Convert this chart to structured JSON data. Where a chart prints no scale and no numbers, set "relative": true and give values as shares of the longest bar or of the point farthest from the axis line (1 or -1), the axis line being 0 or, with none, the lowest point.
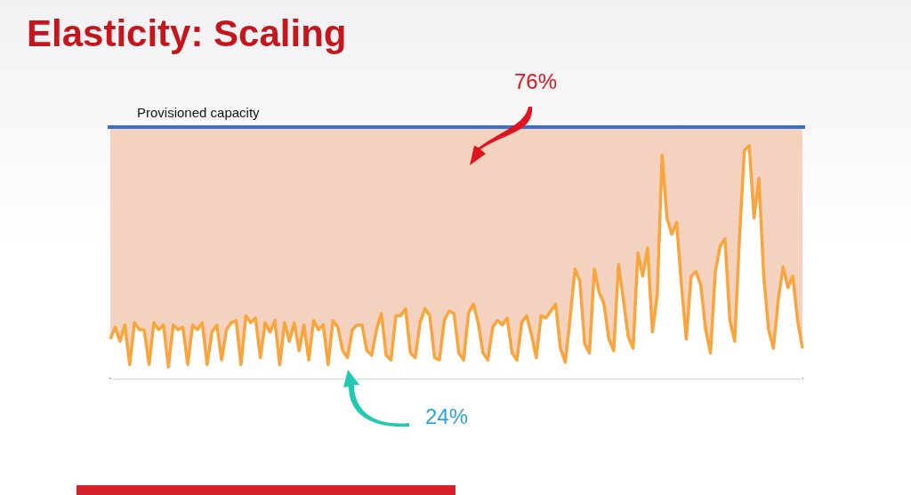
{
  "chart_data": {
    "type": "area",
    "title": "Elasticity: Scaling",
    "relative": true,
    "marker": "none",
    "grid": false,
    "legend": false,
    "categories": [
      null,
      null,
      null,
      null,
      null,
      null,
      null,
      null,
      null,
      null,
      null,
      null,
      null,
      null,
      null,
      null,
      null,
      null,
      null,
      null,
      null,
      null,
      null,
      null,
      null,
      null,
      null,
      null,
      null,
      null,
      null,
      null,
      null,
      null,
      null,
      null,
      null,
      null,
      null,
      null,
      null,
      null,
      null,
      null,
      null,
      null,
      null,
      null,
      null,
      null,
      null,
      null,
      null,
      null,
      null,
      null,
      null,
      null,
      null,
      null,
      null,
      null,
      null,
      null,
      null,
      null,
      null,
      null,
      null,
      null,
      null,
      null,
      null,
      null,
      null,
      null,
      null,
      null,
      null,
      null,
      null,
      null,
      null,
      null,
      null,
      null,
      null,
      null,
      null,
      null,
      null,
      null,
      null,
      null,
      null,
      null,
      null,
      null,
      null,
      null,
      null,
      null,
      null,
      null,
      null,
      null,
      null,
      null,
      null,
      null,
      null,
      null,
      null,
      null,
      null,
      null,
      null,
      null,
      null,
      null,
      null,
      null,
      null,
      null,
      null,
      null,
      null,
      null,
      null,
      null,
      null,
      null,
      null,
      null,
      null,
      null,
      null,
      null,
      null,
      null,
      null,
      null,
      null,
      null
    ],
    "series": [
      {
        "color": "#f7a53c",
        "values": [
          0.17,
          0.22,
          0.16,
          0.23,
          0.06,
          0.24,
          0.21,
          0.21,
          0.06,
          0.24,
          0.21,
          0.23,
          0.05,
          0.23,
          0.21,
          0.22,
          0.06,
          0.23,
          0.21,
          0.24,
          0.06,
          0.2,
          0.23,
          0.08,
          0.21,
          0.24,
          0.25,
          0.06,
          0.27,
          0.24,
          0.26,
          0.09,
          0.24,
          0.2,
          0.25,
          0.06,
          0.24,
          0.16,
          0.24,
          0.12,
          0.23,
          0.08,
          0.25,
          0.21,
          0.23,
          0.06,
          0.25,
          0.22,
          0.12,
          0.09,
          0.21,
          0.23,
          0.23,
          0.12,
          0.1,
          0.21,
          0.28,
          0.1,
          0.08,
          0.27,
          0.27,
          0.3,
          0.11,
          0.09,
          0.24,
          0.3,
          0.27,
          0.09,
          0.08,
          0.25,
          0.29,
          0.28,
          0.11,
          0.08,
          0.28,
          0.32,
          0.24,
          0.11,
          0.08,
          0.22,
          0.25,
          0.23,
          0.26,
          0.11,
          0.08,
          0.24,
          0.27,
          0.19,
          0.09,
          0.27,
          0.26,
          0.29,
          0.32,
          0.13,
          0.07,
          0.26,
          0.47,
          0.42,
          0.15,
          0.11,
          0.47,
          0.37,
          0.32,
          0.17,
          0.12,
          0.49,
          0.34,
          0.18,
          0.13,
          0.54,
          0.44,
          0.56,
          0.2,
          0.36,
          0.96,
          0.69,
          0.62,
          0.67,
          0.4,
          0.17,
          0.44,
          0.46,
          0.4,
          0.21,
          0.11,
          0.46,
          0.57,
          0.6,
          0.25,
          0.16,
          0.61,
          0.98,
          1,
          0.69,
          0.86,
          0.44,
          0.21,
          0.13,
          0.34,
          0.48,
          0.39,
          0.44,
          0.25,
          0.13
        ]
      }
    ],
    "ref_lines": [
      {
        "axis": "y",
        "value": 1.08,
        "label": "Provisioned capacity",
        "color": "#3a6fd6"
      }
    ],
    "bands": [
      {
        "axis": "y",
        "from": 0,
        "to": 1.08,
        "color": "#f3d3bf"
      }
    ],
    "annotations": [
      "76%",
      "24%"
    ]
  }
}
